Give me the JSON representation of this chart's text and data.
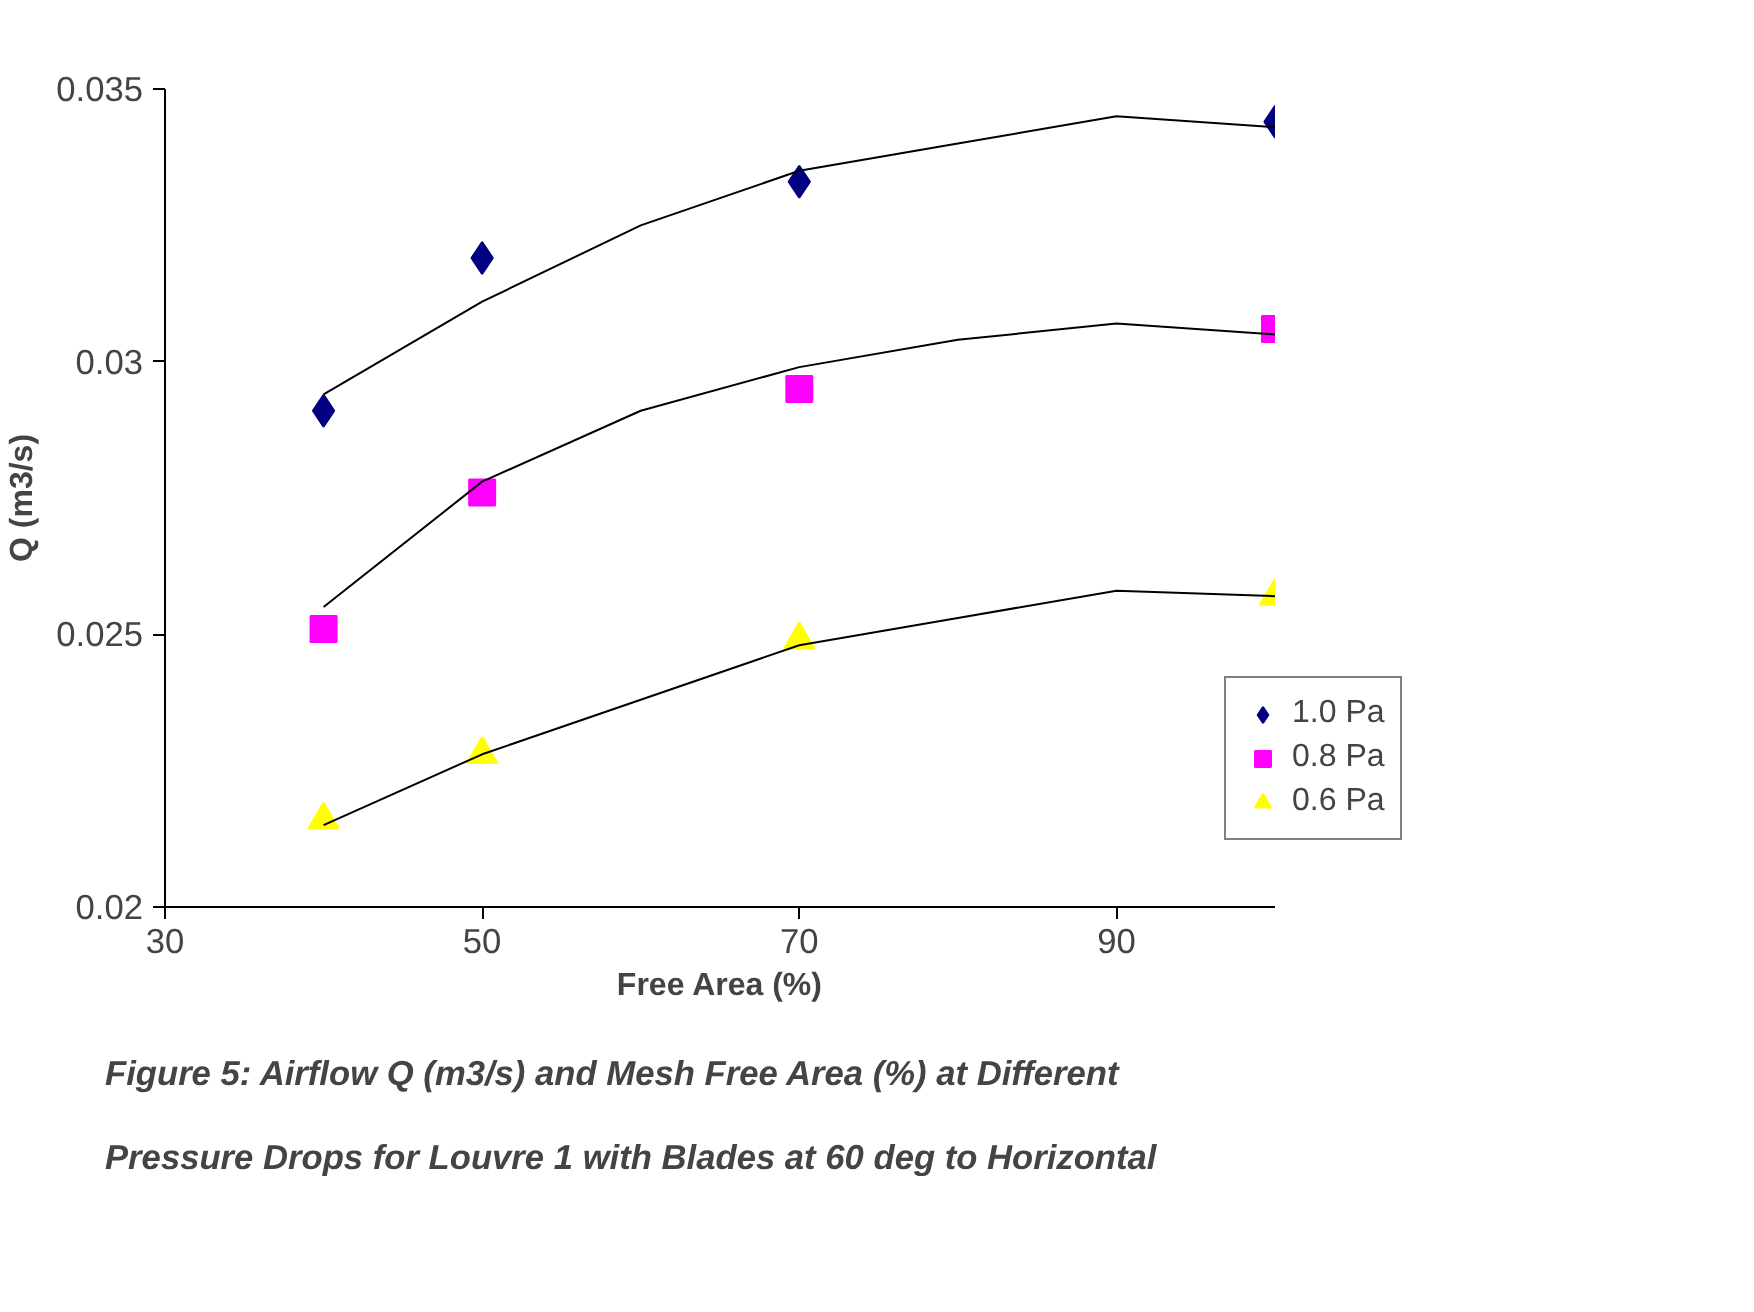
{
  "chart_data": {
    "type": "scatter",
    "xlabel": "Free Area (%)",
    "ylabel": "Q (m3/s)",
    "xlim": [
      30,
      100
    ],
    "ylim": [
      0.02,
      0.035
    ],
    "xticks": [
      30,
      50,
      70,
      90
    ],
    "yticks": [
      0.02,
      0.025,
      0.03,
      0.035
    ],
    "grid": false,
    "legend": "right",
    "series": [
      {
        "name": "1.0 Pa",
        "color": "#000080",
        "marker": "diamond",
        "x": [
          40,
          50,
          70,
          100
        ],
        "values": [
          0.0291,
          0.0319,
          0.0333,
          0.0344
        ]
      },
      {
        "name": "0.8 Pa",
        "color": "#ff00ff",
        "marker": "square",
        "x": [
          40,
          50,
          70,
          100
        ],
        "values": [
          0.0251,
          0.0276,
          0.0295,
          0.0306
        ]
      },
      {
        "name": "0.6 Pa",
        "color": "#ffff00",
        "marker": "triangle",
        "x": [
          40,
          50,
          70,
          100
        ],
        "values": [
          0.0216,
          0.0228,
          0.0249,
          0.0257
        ]
      },
      {
        "type": "line",
        "color": "#000000",
        "x": [
          40,
          50,
          60,
          70,
          80,
          90,
          100
        ],
        "values": [
          0.0294,
          0.0311,
          0.0325,
          0.0335,
          0.034,
          0.0345,
          0.0343
        ]
      },
      {
        "type": "line",
        "color": "#000000",
        "x": [
          40,
          50,
          60,
          70,
          80,
          90,
          100
        ],
        "values": [
          0.0255,
          0.0278,
          0.0291,
          0.0299,
          0.0304,
          0.0307,
          0.0305
        ]
      },
      {
        "type": "line",
        "color": "#000000",
        "x": [
          40,
          50,
          60,
          70,
          80,
          90,
          100
        ],
        "values": [
          0.0215,
          0.0228,
          0.0238,
          0.0248,
          0.0253,
          0.0258,
          0.0257
        ]
      }
    ],
    "annotations": [
      "Figure 5: Airflow Q (m3/s) and Mesh Free Area (%) at Different Pressure Drops for Louvre 1 with Blades at 60 deg to Horizontal"
    ]
  }
}
